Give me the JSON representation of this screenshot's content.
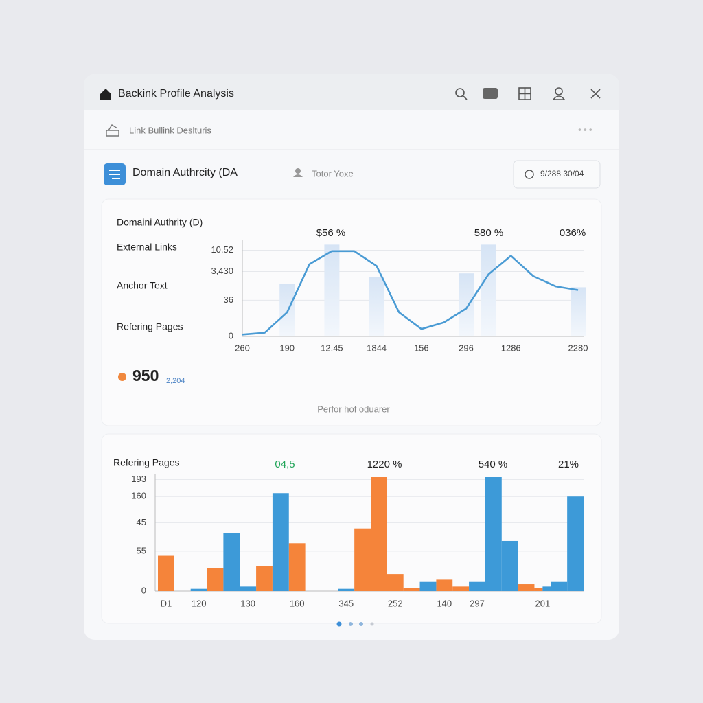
{
  "header": {
    "title": "Backink Profile Analysis"
  },
  "breadcrumb": "Link Bullink Deslturis",
  "toolbar": {
    "metric": "Domain Authrcity (DA",
    "user": "Totor Yoxe",
    "date": "9/288 30/04"
  },
  "panel_labels": [
    "Domaini Authrity (D)",
    "External Links",
    "Anchor Text",
    "Refering Pages"
  ],
  "stat": {
    "value": 950,
    "note": "2,204",
    "color": "#f0883e"
  },
  "footer": "Perfor hof oduarer",
  "chart_data": [
    {
      "type": "line",
      "annotations": [
        {
          "text": "$56 %",
          "color": "#222"
        },
        {
          "text": "580 %",
          "color": "#222"
        },
        {
          "text": "036%",
          "color": "#222"
        }
      ],
      "categories": [
        "260",
        null,
        "190",
        null,
        "12.45",
        null,
        "1844",
        null,
        "156",
        null,
        "296",
        null,
        "1286",
        null,
        null,
        "2280"
      ],
      "series": [
        {
          "color": "#4a9bd4",
          "values": [
            2,
            4,
            26,
            78,
            92,
            92,
            76,
            26,
            8,
            15,
            30,
            67,
            87,
            65,
            54,
            50
          ]
        },
        {
          "type": "bar",
          "color": "#dbe7f6",
          "values": [
            null,
            null,
            57,
            null,
            99,
            null,
            64,
            null,
            null,
            null,
            68,
            99,
            null,
            null,
            null,
            53
          ]
        }
      ],
      "ylim": [
        0,
        100
      ],
      "yticks": [
        0,
        {
          "value": 39,
          "label": "36"
        },
        {
          "value": 70,
          "label": "3,430"
        },
        {
          "value": 93,
          "label": "10.52"
        }
      ],
      "grid": true
    },
    {
      "type": "bar",
      "title": "Refering Pages",
      "annotations": [
        {
          "text": "04,5",
          "color": "#22a55a"
        },
        {
          "text": "1220 %",
          "color": "#222"
        },
        {
          "text": "540 %",
          "color": "#222"
        },
        {
          "text": "21%",
          "color": "#222"
        }
      ],
      "categories": [
        "D1",
        null,
        "120",
        null,
        null,
        "130",
        null,
        null,
        "160",
        null,
        null,
        "345",
        null,
        null,
        "252",
        null,
        null,
        "140",
        null,
        "297",
        null,
        null,
        null,
        "201",
        null,
        null
      ],
      "series": [
        {
          "color": "#f5843a",
          "values": [
            31,
            null,
            null,
            20,
            null,
            null,
            22,
            null,
            42,
            null,
            null,
            null,
            55,
            100,
            15,
            3,
            null,
            10,
            4,
            null,
            null,
            null,
            6,
            3,
            null,
            null
          ]
        },
        {
          "color": "#3d9ad8",
          "values": [
            null,
            null,
            2,
            null,
            51,
            4,
            null,
            86,
            null,
            null,
            null,
            2,
            null,
            null,
            null,
            null,
            8,
            null,
            null,
            8,
            100,
            44,
            null,
            4,
            8,
            83
          ]
        }
      ],
      "ylim": [
        0,
        100
      ],
      "yticks": [
        0,
        {
          "value": 35,
          "label": "55"
        },
        {
          "value": 60,
          "label": "45"
        },
        {
          "value": 83,
          "label": "160"
        },
        {
          "value": 98,
          "label": "193"
        }
      ],
      "grid": true
    }
  ]
}
